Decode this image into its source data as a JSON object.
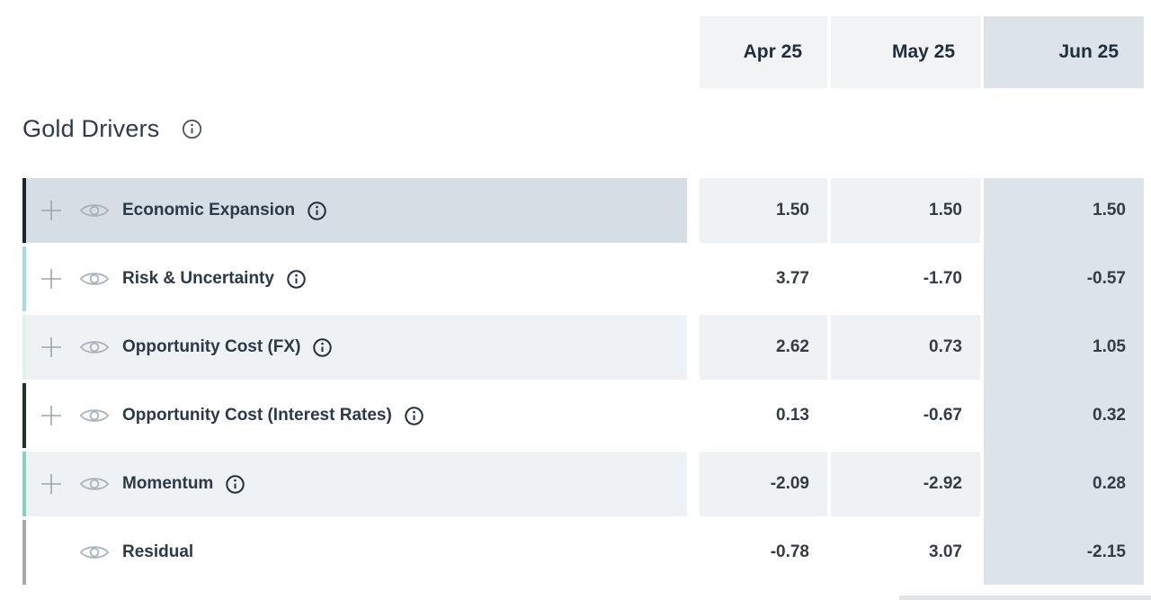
{
  "section": {
    "title": "Gold Drivers",
    "info_icon": "info-icon"
  },
  "columns": [
    "Apr 25",
    "May 25",
    "Jun 25"
  ],
  "highlighted_column": "Jun 25",
  "rows": [
    {
      "label": "Economic Expansion",
      "values": [
        "1.50",
        "1.50",
        "1.50"
      ],
      "accent": "#1b2531",
      "has_plus": true,
      "has_info": true,
      "selected": true
    },
    {
      "label": "Risk & Uncertainty",
      "values": [
        "3.77",
        "-1.70",
        "-0.57"
      ],
      "accent": "#a5dbe8",
      "has_plus": true,
      "has_info": true,
      "selected": false
    },
    {
      "label": "Opportunity Cost (FX)",
      "values": [
        "2.62",
        "0.73",
        "1.05"
      ],
      "accent": "#e2f1ea",
      "has_plus": true,
      "has_info": true,
      "selected": false
    },
    {
      "label": "Opportunity Cost (Interest Rates)",
      "values": [
        "0.13",
        "-0.67",
        "0.32"
      ],
      "accent": "#1e3328",
      "has_plus": true,
      "has_info": true,
      "selected": false
    },
    {
      "label": "Momentum",
      "values": [
        "-2.09",
        "-2.92",
        "0.28"
      ],
      "accent": "#7ed4bd",
      "has_plus": true,
      "has_info": true,
      "selected": false
    },
    {
      "label": "Residual",
      "values": [
        "-0.78",
        "3.07",
        "-2.15"
      ],
      "accent": "#a8a8a8",
      "has_plus": false,
      "has_info": false,
      "selected": false
    }
  ],
  "colors": {
    "header_bg": "#f1f3f5",
    "highlight_column_bg": "#dce3e9",
    "selected_row_bg": "#d5dde5",
    "striped_row_bg": "#eff2f4",
    "text_dark": "#2b3948"
  }
}
